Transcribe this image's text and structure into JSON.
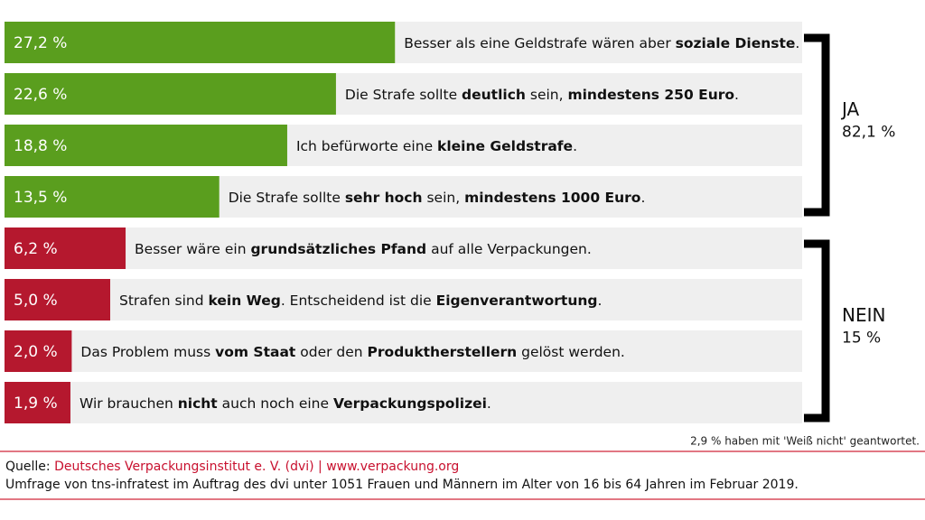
{
  "chart_data": {
    "type": "bar",
    "series": [
      {
        "name": "JA",
        "total_label": "82,1 %",
        "color": "#5a9e1e",
        "values": [
          27.2,
          22.6,
          18.8,
          13.5
        ],
        "value_labels": [
          "27,2 %",
          "22,6 %",
          "18,8 %",
          "13,5 %"
        ],
        "categories": [
          [
            "Besser als eine Geldstrafe wären aber ",
            "soziale Dienste",
            "."
          ],
          [
            "Die Strafe sollte ",
            "deutlich",
            " sein, ",
            "mindestens 250 Euro",
            "."
          ],
          [
            "Ich befürworte eine ",
            "kleine Geldstrafe",
            "."
          ],
          [
            "Die Strafe sollte ",
            "sehr hoch",
            " sein, ",
            "mindestens 1000 Euro",
            "."
          ]
        ]
      },
      {
        "name": "NEIN",
        "total_label": "15 %",
        "color": "#b5182e",
        "values": [
          6.2,
          5.0,
          2.0,
          1.9
        ],
        "value_labels": [
          "6,2 %",
          "5,0 %",
          "2,0 %",
          "1,9 %"
        ],
        "categories": [
          [
            "Besser wäre ein ",
            "grundsätzliches Pfand",
            " auf alle Verpackungen."
          ],
          [
            "Strafen sind ",
            "kein Weg",
            ". Entscheidend ist die ",
            "Eigenverantwortung",
            "."
          ],
          [
            "Das Problem muss ",
            "vom Staat",
            " oder den ",
            "Produktherstellern",
            " gelöst werden."
          ],
          [
            "Wir brauchen ",
            "nicht",
            " auch noch eine ",
            "Verpackungspolizei",
            "."
          ]
        ]
      }
    ],
    "note": "2,9 % haben mit 'Weiß nicht' geantwortet.",
    "source_prefix": "Quelle:",
    "source": "Deutsches Verpackungsinstitut e. V. (dvi) | www.verpackung.org",
    "survey": "Umfrage von tns-infratest im Auftrag des dvi unter 1051 Frauen und Männern im Alter von 16 bis 64 Jahren im Februar 2019."
  }
}
